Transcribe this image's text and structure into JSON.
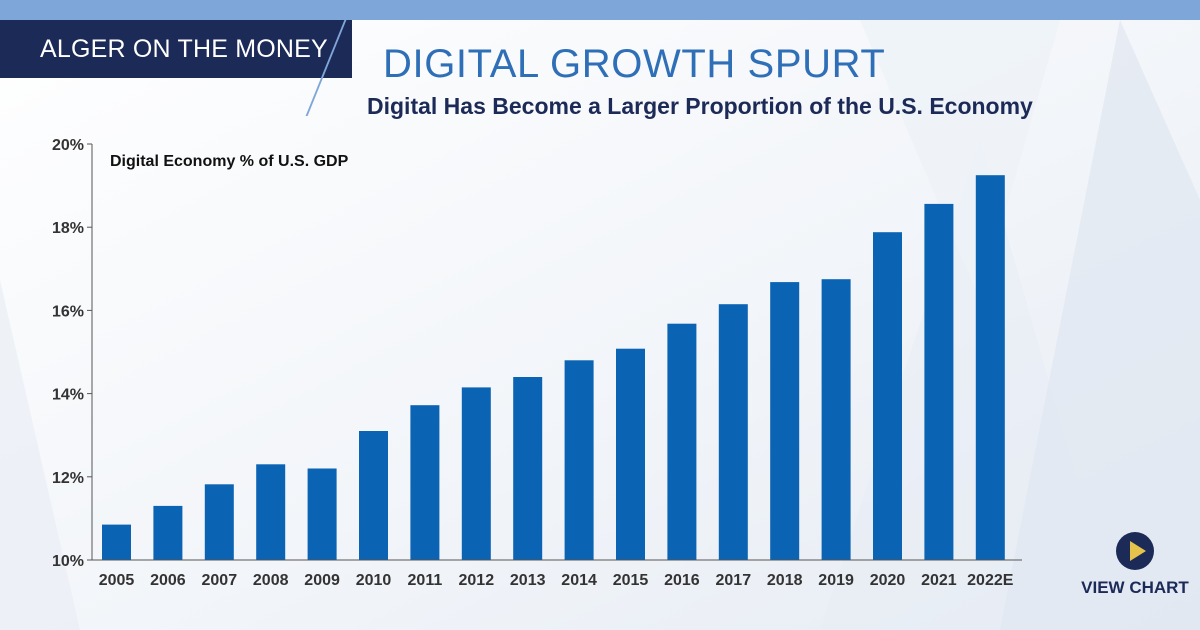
{
  "header": {
    "brand": "ALGER ON THE MONEY",
    "title": "DIGITAL GROWTH SPURT",
    "subtitle": "Digital Has Become a Larger Proportion of the U.S. Economy"
  },
  "cta": {
    "label": "VIEW CHART"
  },
  "colors": {
    "navy": "#1c2a57",
    "bar": "#0a63b3",
    "accent": "#7fa6d9",
    "play": "#e6c34a"
  },
  "chart_data": {
    "type": "bar",
    "title": "Digital Economy % of U.S. GDP",
    "xlabel": "",
    "ylabel": "",
    "ylim": [
      10,
      20
    ],
    "yticks": [
      10,
      12,
      14,
      16,
      18,
      20
    ],
    "ytick_labels": [
      "10%",
      "12%",
      "14%",
      "16%",
      "18%",
      "20%"
    ],
    "categories": [
      "2005",
      "2006",
      "2007",
      "2008",
      "2009",
      "2010",
      "2011",
      "2012",
      "2013",
      "2014",
      "2015",
      "2016",
      "2017",
      "2018",
      "2019",
      "2020",
      "2021",
      "2022E"
    ],
    "values": [
      10.85,
      11.3,
      11.82,
      12.3,
      12.2,
      13.1,
      13.72,
      14.15,
      14.4,
      14.8,
      15.08,
      15.68,
      16.15,
      16.68,
      16.75,
      17.88,
      18.56,
      19.25
    ],
    "grid": false,
    "legend": "none"
  }
}
